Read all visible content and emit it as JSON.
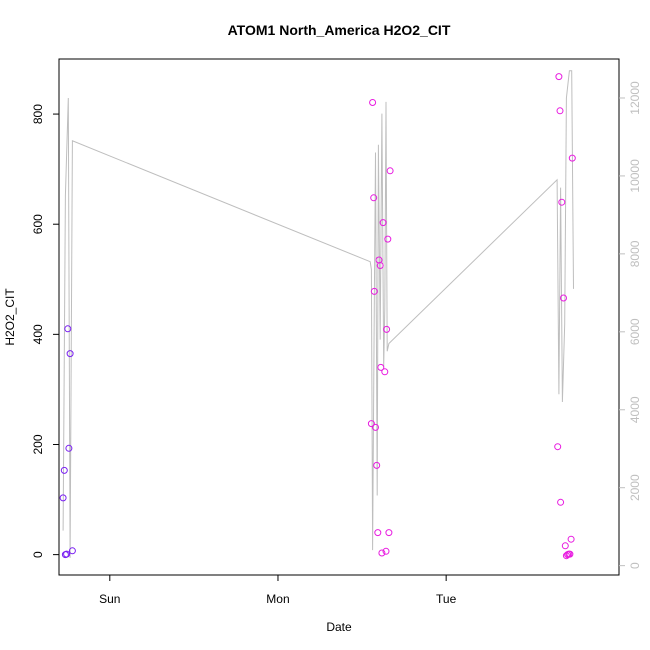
{
  "chart_data": {
    "type": "scatter",
    "title": "ATOM1 North_America H2O2_CIT",
    "xlabel": "Date",
    "ylabel": "H2O2_CIT",
    "x_axis_type": "date",
    "x_ticks": [
      {
        "value": "2016-08-07T00:00",
        "label": "Sun"
      },
      {
        "value": "2016-08-08T00:00",
        "label": "Mon"
      },
      {
        "value": "2016-08-09T00:00",
        "label": "Tue"
      }
    ],
    "xlim": [
      "2016-08-06T16:45",
      "2016-08-10T00:40"
    ],
    "ylim": [
      -37,
      900
    ],
    "y_ticks": [
      0,
      200,
      400,
      600,
      800
    ],
    "y2lim": [
      -240,
      13000
    ],
    "y2_ticks": [
      0,
      2000,
      4000,
      6000,
      8000,
      10000,
      12000
    ],
    "grid": false,
    "legend": "none",
    "colors": {
      "line": "#bebebe",
      "right_axis": "#bfbfbf",
      "early_points": "#7a1ff2",
      "late_points": "#e81ce0"
    },
    "series": [
      {
        "kind": "points",
        "y_axis": "left",
        "points": [
          {
            "x": "2016-08-06T17:20",
            "y": 103,
            "c": "#7a1ff2"
          },
          {
            "x": "2016-08-06T17:30",
            "y": 153,
            "c": "#7a1ff2"
          },
          {
            "x": "2016-08-06T17:40",
            "y": 0,
            "c": "#7a1ff2"
          },
          {
            "x": "2016-08-06T17:50",
            "y": 1,
            "c": "#7a1ff2"
          },
          {
            "x": "2016-08-06T18:00",
            "y": 410,
            "c": "#7a1ff2"
          },
          {
            "x": "2016-08-06T18:10",
            "y": 193,
            "c": "#7a1ff2"
          },
          {
            "x": "2016-08-06T18:20",
            "y": 365,
            "c": "#7a1ff2"
          },
          {
            "x": "2016-08-06T18:40",
            "y": 7,
            "c": "#7a1ff2"
          },
          {
            "x": "2016-08-08T13:20",
            "y": 238,
            "c": "#e81ce0"
          },
          {
            "x": "2016-08-08T13:30",
            "y": 821,
            "c": "#e81ce0"
          },
          {
            "x": "2016-08-08T13:40",
            "y": 648,
            "c": "#e81ce0"
          },
          {
            "x": "2016-08-08T13:45",
            "y": 478,
            "c": "#e81ce0"
          },
          {
            "x": "2016-08-08T13:55",
            "y": 231,
            "c": "#e81ce0"
          },
          {
            "x": "2016-08-08T14:05",
            "y": 162,
            "c": "#e81ce0"
          },
          {
            "x": "2016-08-08T14:15",
            "y": 40,
            "c": "#e81ce0"
          },
          {
            "x": "2016-08-08T14:25",
            "y": 535,
            "c": "#e81ce0"
          },
          {
            "x": "2016-08-08T14:35",
            "y": 525,
            "c": "#e81ce0"
          },
          {
            "x": "2016-08-08T14:40",
            "y": 340,
            "c": "#e81ce0"
          },
          {
            "x": "2016-08-08T14:50",
            "y": 3,
            "c": "#e81ce0"
          },
          {
            "x": "2016-08-08T15:00",
            "y": 603,
            "c": "#e81ce0"
          },
          {
            "x": "2016-08-08T15:15",
            "y": 332,
            "c": "#e81ce0"
          },
          {
            "x": "2016-08-08T15:25",
            "y": 6,
            "c": "#e81ce0"
          },
          {
            "x": "2016-08-08T15:30",
            "y": 409,
            "c": "#e81ce0"
          },
          {
            "x": "2016-08-08T15:40",
            "y": 573,
            "c": "#e81ce0"
          },
          {
            "x": "2016-08-08T15:50",
            "y": 40,
            "c": "#e81ce0"
          },
          {
            "x": "2016-08-08T16:00",
            "y": 697,
            "c": "#e81ce0"
          },
          {
            "x": "2016-08-09T15:55",
            "y": 196,
            "c": "#e81ce0"
          },
          {
            "x": "2016-08-09T16:05",
            "y": 868,
            "c": "#e81ce0"
          },
          {
            "x": "2016-08-09T16:15",
            "y": 806,
            "c": "#e81ce0"
          },
          {
            "x": "2016-08-09T16:20",
            "y": 95,
            "c": "#e81ce0"
          },
          {
            "x": "2016-08-09T16:30",
            "y": 640,
            "c": "#e81ce0"
          },
          {
            "x": "2016-08-09T16:45",
            "y": 466,
            "c": "#e81ce0"
          },
          {
            "x": "2016-08-09T17:00",
            "y": 16,
            "c": "#e81ce0"
          },
          {
            "x": "2016-08-09T17:10",
            "y": -2,
            "c": "#e81ce0"
          },
          {
            "x": "2016-08-09T17:20",
            "y": 0,
            "c": "#e81ce0"
          },
          {
            "x": "2016-08-09T17:30",
            "y": 1,
            "c": "#e81ce0"
          },
          {
            "x": "2016-08-09T17:40",
            "y": 1,
            "c": "#e81ce0"
          },
          {
            "x": "2016-08-09T17:50",
            "y": 28,
            "c": "#e81ce0"
          },
          {
            "x": "2016-08-09T18:00",
            "y": 720,
            "c": "#e81ce0"
          }
        ]
      },
      {
        "kind": "line",
        "y_axis": "right",
        "points": [
          {
            "x": "2016-08-06T17:20",
            "y": 900
          },
          {
            "x": "2016-08-06T17:40",
            "y": 9500
          },
          {
            "x": "2016-08-06T18:05",
            "y": 12000
          },
          {
            "x": "2016-08-06T18:20",
            "y": 200
          },
          {
            "x": "2016-08-06T18:40",
            "y": 10900
          },
          {
            "x": "2016-08-08T13:10",
            "y": 7800
          },
          {
            "x": "2016-08-08T13:20",
            "y": 7600
          },
          {
            "x": "2016-08-08T13:30",
            "y": 400
          },
          {
            "x": "2016-08-08T13:45",
            "y": 6700
          },
          {
            "x": "2016-08-08T13:55",
            "y": 10600
          },
          {
            "x": "2016-08-08T14:10",
            "y": 1800
          },
          {
            "x": "2016-08-08T14:20",
            "y": 10800
          },
          {
            "x": "2016-08-08T14:35",
            "y": 5800
          },
          {
            "x": "2016-08-08T14:50",
            "y": 11600
          },
          {
            "x": "2016-08-08T15:05",
            "y": 5100
          },
          {
            "x": "2016-08-08T15:15",
            "y": 6600
          },
          {
            "x": "2016-08-08T15:25",
            "y": 11900
          },
          {
            "x": "2016-08-08T15:35",
            "y": 5500
          },
          {
            "x": "2016-08-08T15:50",
            "y": 5700
          },
          {
            "x": "2016-08-09T15:50",
            "y": 9900
          },
          {
            "x": "2016-08-09T16:05",
            "y": 4400
          },
          {
            "x": "2016-08-09T16:20",
            "y": 9700
          },
          {
            "x": "2016-08-09T16:35",
            "y": 4200
          },
          {
            "x": "2016-08-09T16:55",
            "y": 6200
          },
          {
            "x": "2016-08-09T17:10",
            "y": 12000
          },
          {
            "x": "2016-08-09T17:35",
            "y": 12700
          },
          {
            "x": "2016-08-09T17:55",
            "y": 12700
          },
          {
            "x": "2016-08-09T18:10",
            "y": 7100
          }
        ]
      }
    ]
  }
}
